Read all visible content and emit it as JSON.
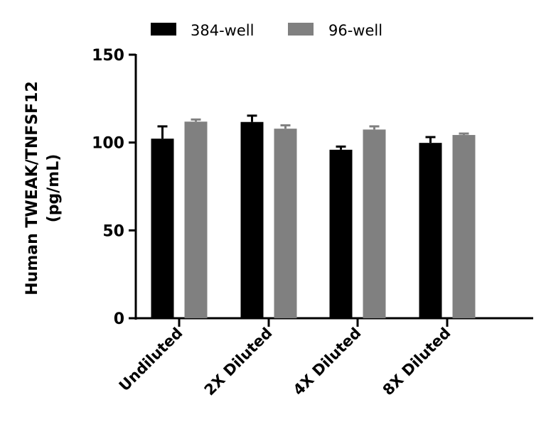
{
  "chart_data": {
    "type": "bar",
    "title": "",
    "xlabel": "",
    "ylabel": [
      "Human TWEAK/TNFSF12",
      "(pg/mL)"
    ],
    "ylim": [
      0,
      150
    ],
    "yticks": [
      "0",
      "50",
      "100",
      "150"
    ],
    "categories": [
      "Undiluted",
      "2X Diluted",
      "4X Diluted",
      "8X Diluted"
    ],
    "legend_position": "top",
    "grid": false,
    "series": [
      {
        "name": "384-well",
        "color": "#000000",
        "values": [
          102.2,
          111.7,
          95.9,
          99.8
        ],
        "error_upper": [
          109.2,
          115.3,
          97.7,
          103.1
        ]
      },
      {
        "name": "96-well",
        "color": "#808080",
        "values": [
          111.9,
          107.9,
          107.4,
          104.3
        ],
        "error_upper": [
          113.1,
          109.8,
          109.2,
          105.1
        ]
      }
    ]
  }
}
